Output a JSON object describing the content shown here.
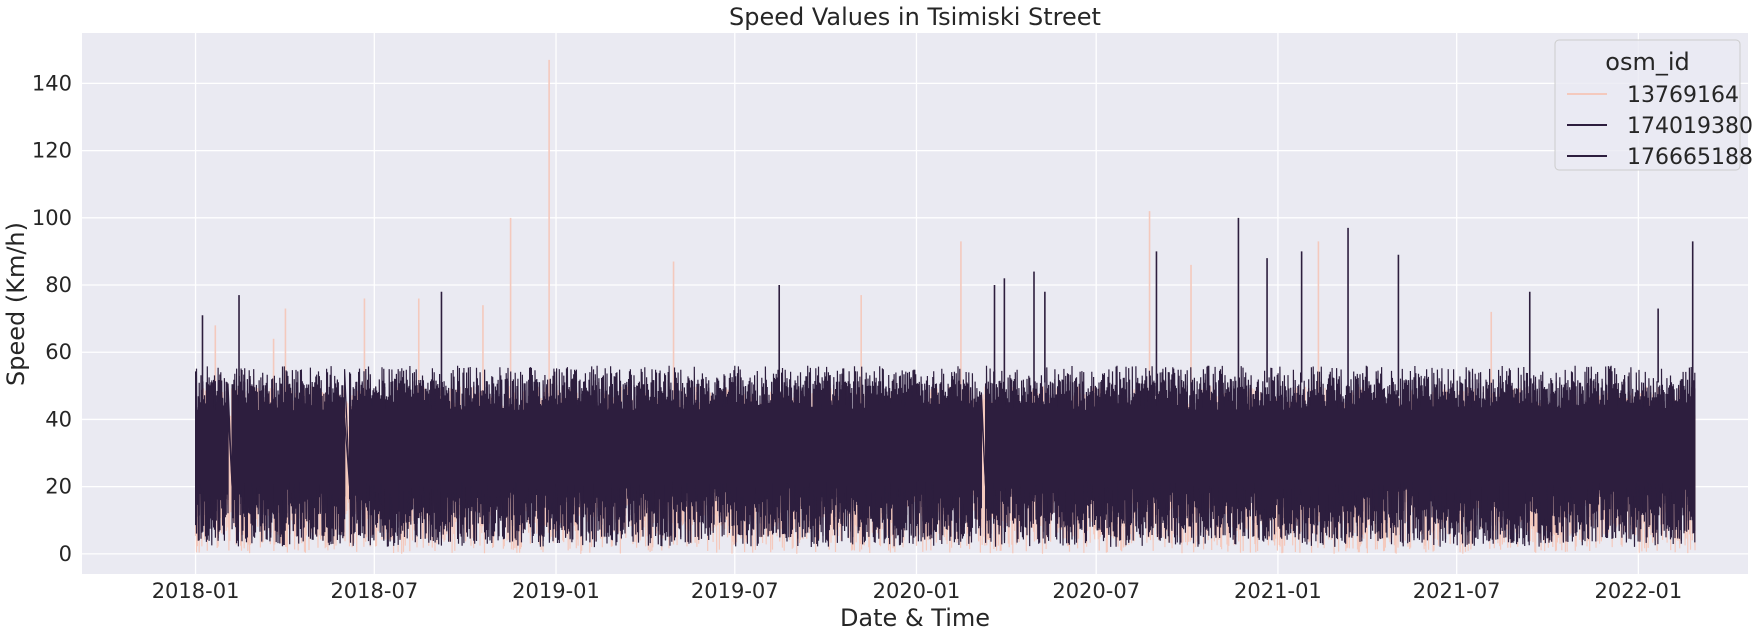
{
  "chart_data": {
    "type": "line",
    "title": "Speed Values in Tsimiski Street",
    "xlabel": "Date & Time",
    "ylabel": "Speed (Km/h)",
    "xlim": [
      "2017-09-08",
      "2022-04-22"
    ],
    "ylim": [
      -6,
      155
    ],
    "x_ticks": [
      "2018-01",
      "2018-07",
      "2019-01",
      "2019-07",
      "2020-01",
      "2020-07",
      "2021-01",
      "2021-07",
      "2022-01"
    ],
    "y_ticks": [
      0,
      20,
      40,
      60,
      80,
      100,
      120,
      140
    ],
    "grid": true,
    "background": "#eaeaf2",
    "legend": {
      "title": "osm_id",
      "placement": "top-right"
    },
    "series": [
      {
        "name": "13769164",
        "color": "#f4c9bd",
        "segments": [
          {
            "start": "2018-01-01",
            "end": "2022-02-28"
          }
        ],
        "typical_low": 0,
        "typical_high": 50,
        "spikes": [
          {
            "date": "2018-01-21",
            "value": 68
          },
          {
            "date": "2018-03-21",
            "value": 64
          },
          {
            "date": "2018-04-02",
            "value": 73
          },
          {
            "date": "2018-06-21",
            "value": 76
          },
          {
            "date": "2018-08-15",
            "value": 76
          },
          {
            "date": "2018-10-19",
            "value": 74
          },
          {
            "date": "2018-11-16",
            "value": 100
          },
          {
            "date": "2018-12-25",
            "value": 147
          },
          {
            "date": "2019-04-30",
            "value": 87
          },
          {
            "date": "2019-11-06",
            "value": 77
          },
          {
            "date": "2020-02-15",
            "value": 93
          },
          {
            "date": "2020-08-24",
            "value": 102
          },
          {
            "date": "2020-10-05",
            "value": 86
          },
          {
            "date": "2021-02-11",
            "value": 93
          },
          {
            "date": "2021-08-05",
            "value": 72
          }
        ]
      },
      {
        "name": "174019380",
        "color": "#2d1e3e",
        "segments": [
          {
            "start": "2018-01-01",
            "end": "2018-02-03"
          },
          {
            "start": "2018-02-07",
            "end": "2018-06-01"
          },
          {
            "start": "2018-06-06",
            "end": "2020-03-07"
          },
          {
            "start": "2020-03-11",
            "end": "2022-02-28"
          }
        ],
        "typical_low": 2,
        "typical_high": 52,
        "spikes": [
          {
            "date": "2018-01-08",
            "value": 71
          },
          {
            "date": "2018-02-14",
            "value": 77
          },
          {
            "date": "2018-09-07",
            "value": 78
          },
          {
            "date": "2019-08-15",
            "value": 80
          },
          {
            "date": "2020-03-30",
            "value": 82
          },
          {
            "date": "2020-04-29",
            "value": 84
          },
          {
            "date": "2020-08-31",
            "value": 90
          },
          {
            "date": "2020-11-22",
            "value": 100
          },
          {
            "date": "2021-03-13",
            "value": 97
          },
          {
            "date": "2021-05-03",
            "value": 89
          },
          {
            "date": "2021-09-13",
            "value": 78
          },
          {
            "date": "2022-02-25",
            "value": 93
          }
        ]
      },
      {
        "name": "176665188",
        "color": "#2d1e3e",
        "segments": [
          {
            "start": "2018-01-01",
            "end": "2018-02-03"
          },
          {
            "start": "2018-02-07",
            "end": "2018-06-01"
          },
          {
            "start": "2018-06-06",
            "end": "2020-03-07"
          },
          {
            "start": "2020-03-11",
            "end": "2022-02-28"
          }
        ],
        "typical_low": 3,
        "typical_high": 56,
        "spikes": [
          {
            "date": "2020-03-20",
            "value": 80
          },
          {
            "date": "2020-05-10",
            "value": 78
          },
          {
            "date": "2020-12-21",
            "value": 88
          },
          {
            "date": "2021-01-25",
            "value": 90
          },
          {
            "date": "2022-01-21",
            "value": 73
          }
        ]
      }
    ]
  }
}
